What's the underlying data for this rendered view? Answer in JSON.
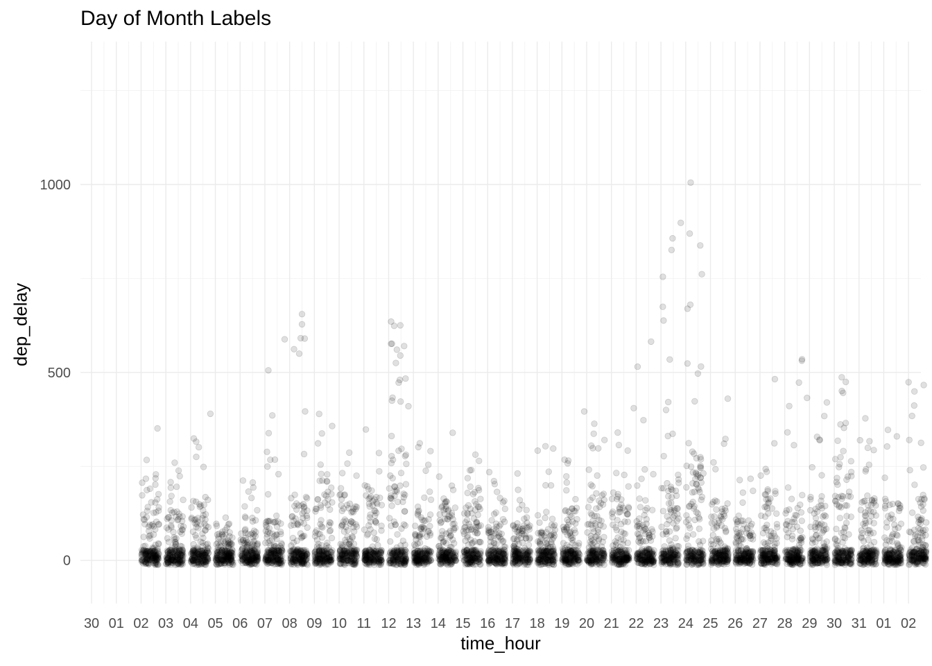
{
  "chart_data": {
    "type": "scatter",
    "title": "Day of Month Labels",
    "xlabel": "time_hour",
    "ylabel": "dep_delay",
    "x_tick_labels": [
      "30",
      "01",
      "02",
      "03",
      "04",
      "05",
      "06",
      "07",
      "08",
      "09",
      "10",
      "11",
      "12",
      "13",
      "14",
      "15",
      "16",
      "17",
      "18",
      "19",
      "20",
      "21",
      "22",
      "23",
      "24",
      "25",
      "26",
      "27",
      "28",
      "29",
      "30",
      "31",
      "01",
      "02"
    ],
    "x_range_days": [
      -1.45,
      32.5
    ],
    "y_ticks": [
      0,
      500,
      1000
    ],
    "ylim": [
      -115,
      1380
    ],
    "grid": true,
    "legend": "none",
    "point_color": "#000000",
    "point_alpha": 0.12,
    "daily_profile": [
      {
        "day": 1,
        "max": 365,
        "spread": 230
      },
      {
        "day": 2,
        "max": 270,
        "spread": 140
      },
      {
        "day": 3,
        "max": 390,
        "spread": 170
      },
      {
        "day": 4,
        "max": 125,
        "spread": 70
      },
      {
        "day": 5,
        "max": 215,
        "spread": 80
      },
      {
        "day": 6,
        "max": 585,
        "spread": 110
      },
      {
        "day": 7,
        "max": 655,
        "spread": 180
      },
      {
        "day": 8,
        "max": 450,
        "spread": 230
      },
      {
        "day": 9,
        "max": 310,
        "spread": 190
      },
      {
        "day": 10,
        "max": 365,
        "spread": 200
      },
      {
        "day": 11,
        "max": 635,
        "spread": 300
      },
      {
        "day": 12,
        "max": 350,
        "spread": 170
      },
      {
        "day": 13,
        "max": 345,
        "spread": 170
      },
      {
        "day": 14,
        "max": 315,
        "spread": 150
      },
      {
        "day": 15,
        "max": 235,
        "spread": 110
      },
      {
        "day": 16,
        "max": 240,
        "spread": 100
      },
      {
        "day": 17,
        "max": 365,
        "spread": 130
      },
      {
        "day": 18,
        "max": 315,
        "spread": 140
      },
      {
        "day": 19,
        "max": 395,
        "spread": 180
      },
      {
        "day": 20,
        "max": 405,
        "spread": 190
      },
      {
        "day": 21,
        "max": 580,
        "spread": 140
      },
      {
        "day": 22,
        "max": 900,
        "spread": 230
      },
      {
        "day": 23,
        "max": 1005,
        "spread": 300
      },
      {
        "day": 24,
        "max": 430,
        "spread": 170
      },
      {
        "day": 25,
        "max": 220,
        "spread": 110
      },
      {
        "day": 26,
        "max": 390,
        "spread": 190
      },
      {
        "day": 27,
        "max": 535,
        "spread": 160
      },
      {
        "day": 28,
        "max": 435,
        "spread": 150
      },
      {
        "day": 29,
        "max": 485,
        "spread": 280
      },
      {
        "day": 30,
        "max": 385,
        "spread": 180
      },
      {
        "day": 31,
        "max": 365,
        "spread": 160
      },
      {
        "day": 32,
        "max": 475,
        "spread": 170
      }
    ],
    "highlighted_points": [
      {
        "day": 23.2,
        "y": 1005
      },
      {
        "day": 22.8,
        "y": 898
      },
      {
        "day": 7.5,
        "y": 655
      },
      {
        "day": 7.5,
        "y": 628
      },
      {
        "day": 6.8,
        "y": 588
      },
      {
        "day": 11.1,
        "y": 635
      },
      {
        "day": 11.1,
        "y": 576
      },
      {
        "day": 21.6,
        "y": 582
      },
      {
        "day": 27.7,
        "y": 535
      },
      {
        "day": 27.9,
        "y": 432
      },
      {
        "day": 26.6,
        "y": 482
      },
      {
        "day": 29.3,
        "y": 487
      },
      {
        "day": 32.0,
        "y": 474
      },
      {
        "day": 24.7,
        "y": 430
      },
      {
        "day": 20.9,
        "y": 405
      },
      {
        "day": 18.9,
        "y": 396
      },
      {
        "day": 11.8,
        "y": 410
      },
      {
        "day": 3.8,
        "y": 390
      }
    ]
  }
}
